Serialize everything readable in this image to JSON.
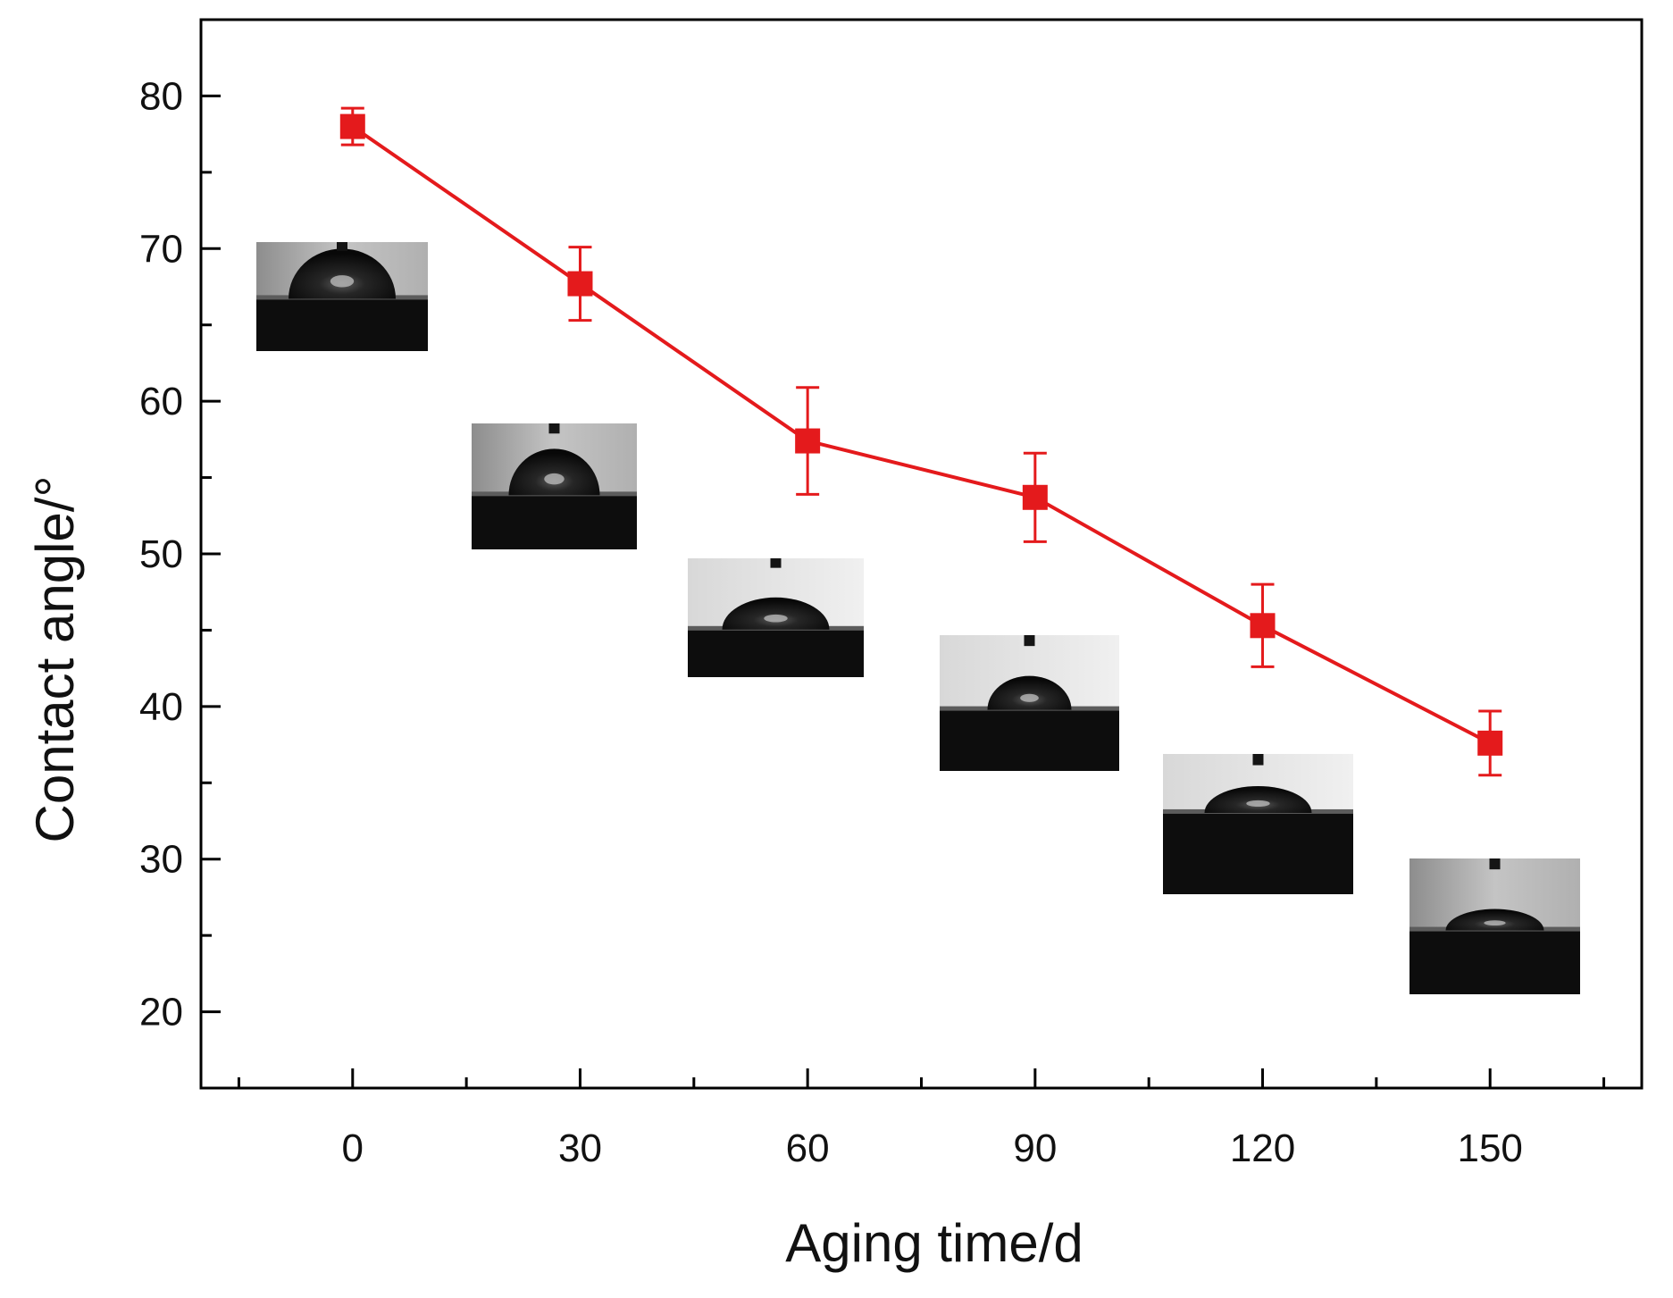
{
  "chart_data": {
    "type": "line",
    "title": "",
    "xlabel": "Aging time/d",
    "ylabel": "Contact angle/°",
    "x": [
      0,
      30,
      60,
      90,
      120,
      150
    ],
    "xticks": [
      "0",
      "30",
      "60",
      "90",
      "120",
      "150"
    ],
    "yticks": [
      "20",
      "30",
      "40",
      "50",
      "60",
      "70",
      "80"
    ],
    "xlim": [
      -20,
      170
    ],
    "ylim": [
      15,
      85
    ],
    "grid": false,
    "series": [
      {
        "name": "Contact angle",
        "color": "#e41a1c",
        "marker": "square",
        "values": [
          78.0,
          67.7,
          57.4,
          53.7,
          45.3,
          37.6
        ],
        "errors": [
          1.2,
          2.4,
          3.5,
          2.9,
          2.7,
          2.1
        ]
      }
    ],
    "insets": [
      {
        "label": "droplet image at 0 d",
        "near_x": 0
      },
      {
        "label": "droplet image at 30 d",
        "near_x": 30
      },
      {
        "label": "droplet image at 60 d",
        "near_x": 60
      },
      {
        "label": "droplet image at 90 d",
        "near_x": 90
      },
      {
        "label": "droplet image at 120 d",
        "near_x": 120
      },
      {
        "label": "droplet image at 150 d",
        "near_x": 150
      }
    ]
  }
}
